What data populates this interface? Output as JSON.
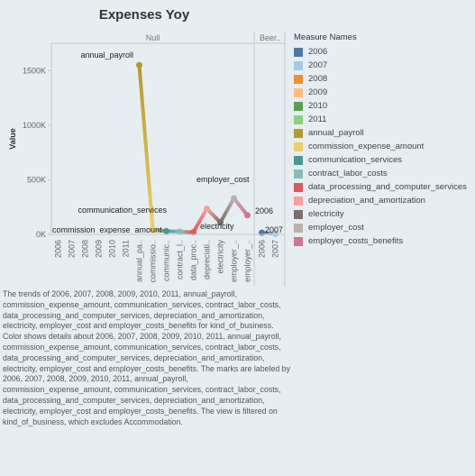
{
  "chart_data": {
    "type": "line",
    "title": "Expenses Yoy",
    "ylabel": "Value",
    "ylim": [
      0,
      1750
    ],
    "yticks": [
      0,
      500,
      1000,
      1500
    ],
    "ytick_labels": [
      "0K",
      "500K",
      "1000K",
      "1500K"
    ],
    "panels": [
      {
        "header": "Null",
        "categories": [
          "2006",
          "2007",
          "2008",
          "2009",
          "2010",
          "2011",
          "annual_pa..",
          "commissio..",
          "communic..",
          "contract_l..",
          "data_proc..",
          "depreciati..",
          "electricity",
          "employer_..",
          "employer_.."
        ],
        "x": [
          "2006",
          "2007",
          "2008",
          "2009",
          "2010",
          "2011",
          "annual_payroll",
          "commission_expense_amount",
          "communication_services",
          "contract_labor_costs",
          "data_processing_and_computer_services",
          "depreciation_and_amortization",
          "electricity",
          "employer_cost",
          "employer_costs_benefits"
        ],
        "values": [
          null,
          null,
          null,
          null,
          null,
          null,
          1550,
          45,
          30,
          25,
          20,
          235,
          110,
          330,
          175
        ],
        "labels": [
          "annual_payroll",
          "commission_expense_amount",
          "communication_services",
          "electricity",
          "employer_cost"
        ]
      },
      {
        "header": "Beer..",
        "categories": [
          "2006",
          "2007"
        ],
        "x": [
          "2006",
          "2007"
        ],
        "values": [
          15,
          5
        ],
        "labels": [
          "2006",
          "2007"
        ]
      }
    ],
    "legend_title": "Measure Names",
    "legend_position": "right",
    "series": [
      {
        "name": "2006",
        "color": "#4e79a7"
      },
      {
        "name": "2007",
        "color": "#a0cbe8"
      },
      {
        "name": "2008",
        "color": "#f28e2b"
      },
      {
        "name": "2009",
        "color": "#ffbe7d"
      },
      {
        "name": "2010",
        "color": "#59a14f"
      },
      {
        "name": "2011",
        "color": "#8cd17d"
      },
      {
        "name": "annual_payroll",
        "color": "#b6992d"
      },
      {
        "name": "commission_expense_amount",
        "color": "#f1ce63"
      },
      {
        "name": "communication_services",
        "color": "#499894"
      },
      {
        "name": "contract_labor_costs",
        "color": "#86bcb6"
      },
      {
        "name": "data_processing_and_computer_services",
        "color": "#e15759"
      },
      {
        "name": "depreciation_and_amortization",
        "color": "#ff9d9a"
      },
      {
        "name": "electricity",
        "color": "#79706e"
      },
      {
        "name": "employer_cost",
        "color": "#bab0ac"
      },
      {
        "name": "employer_costs_benefits",
        "color": "#d37295"
      }
    ]
  },
  "caption": "The trends of 2006, 2007, 2008, 2009, 2010, 2011, annual_payroll, commission_expense_amount, communication_services, contract_labor_costs, data_processing_and_computer_services, depreciation_and_amortization, electricity, employer_cost and employer_costs_benefits for kind_of_business.  Color shows details about 2006, 2007, 2008, 2009, 2010, 2011, annual_payroll, commission_expense_amount, communication_services, contract_labor_costs, data_processing_and_computer_services, depreciation_and_amortization, electricity, employer_cost and employer_costs_benefits.  The marks are labeled by 2006, 2007, 2008, 2009, 2010, 2011, annual_payroll, commission_expense_amount, communication_services, contract_labor_costs, data_processing_and_computer_services, depreciation_and_amortization, electricity, employer_cost and employer_costs_benefits. The view is filtered on kind_of_business, which excludes Accommodation."
}
